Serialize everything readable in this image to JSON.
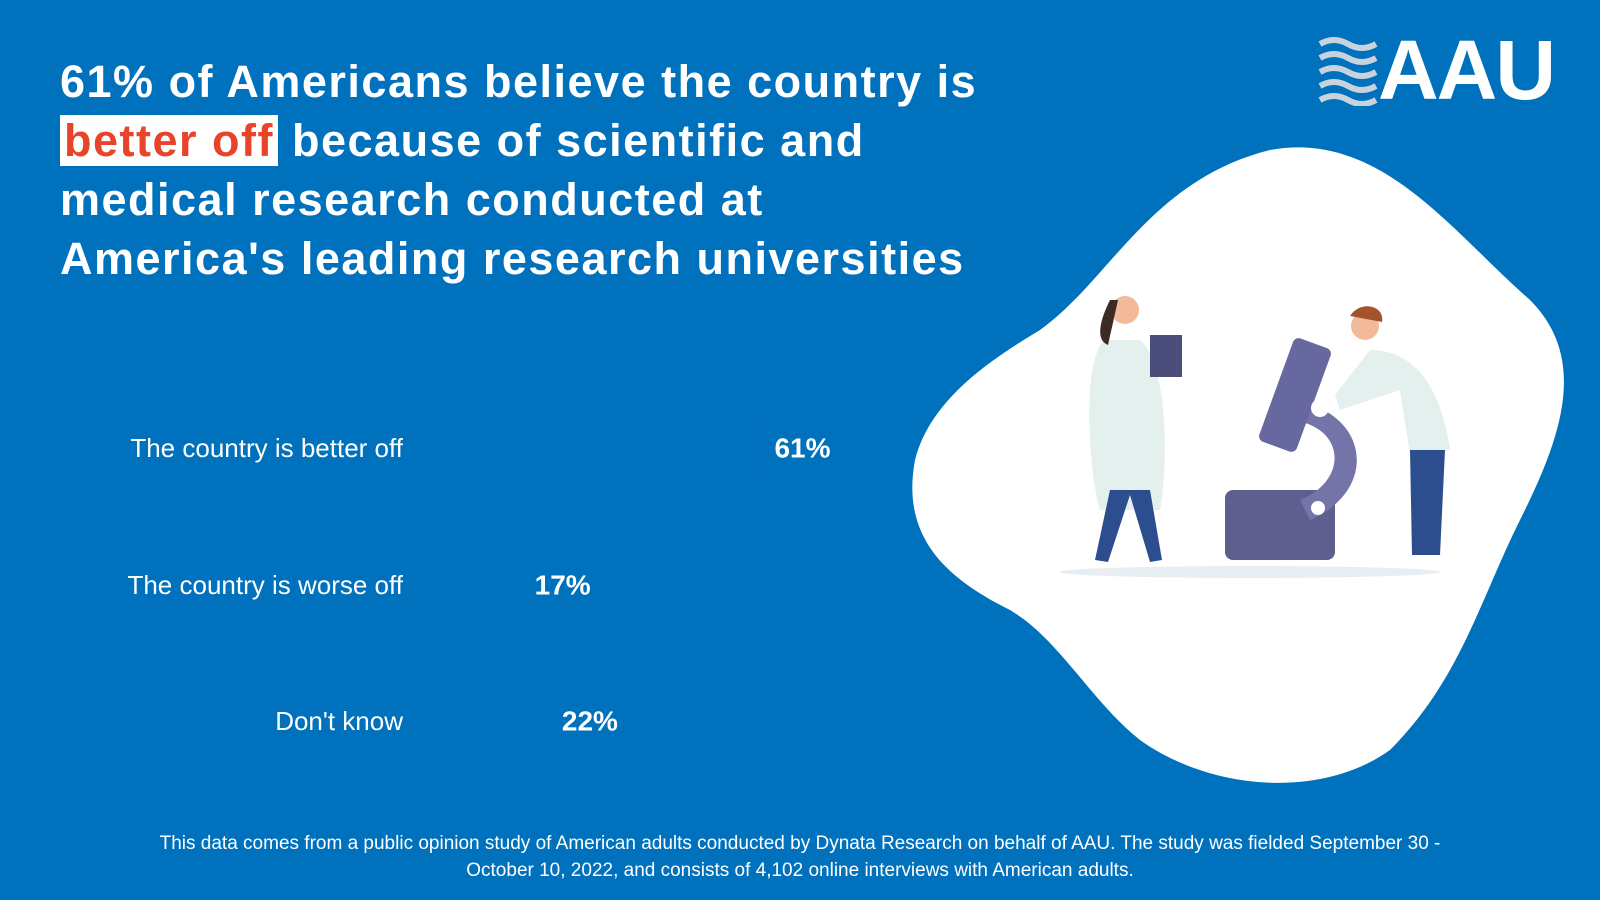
{
  "logo": "AAU",
  "headline": {
    "before": "61% of  Americans believe the country is",
    "highlight": "better off",
    "after": "because of scientific and medical research conducted at America's leading research universities"
  },
  "chart_data": {
    "type": "hbar",
    "categories": [
      "The country is better off",
      "The country is worse off",
      "Don't know"
    ],
    "values": [
      61,
      17,
      22
    ],
    "value_labels": [
      "61%",
      "17%",
      "22%"
    ],
    "color": "#0071bc"
  },
  "footnote": "This data comes from a public opinion study of American adults conducted by Dynata Research on behalf of AAU. The study was fielded September 30 - October 10, 2022, and consists of 4,102 online interviews with American adults."
}
